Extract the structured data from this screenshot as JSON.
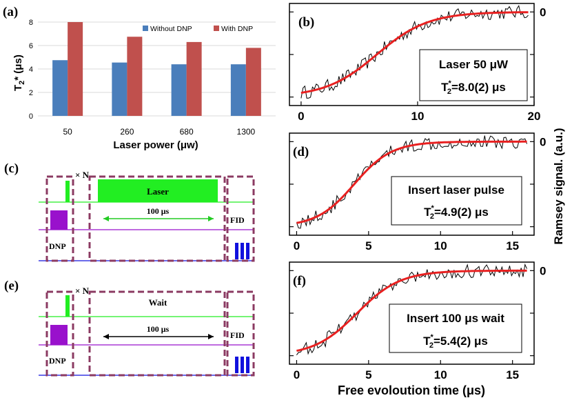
{
  "chart_data": [
    {
      "id": "a",
      "type": "bar",
      "panel_label": "(a)",
      "categories": [
        "50",
        "260",
        "680",
        "1300"
      ],
      "series": [
        {
          "name": "Without DNP",
          "color": "#4a7ebb",
          "values": [
            4.75,
            4.55,
            4.4,
            4.4
          ]
        },
        {
          "name": "With DNP",
          "color": "#c0504d",
          "values": [
            8.0,
            6.75,
            6.3,
            5.8
          ]
        }
      ],
      "ylabel_main": "T",
      "ylabel_sub": "2",
      "ylabel_rest": "* (μs)",
      "xlabel": "Laser power (μw)",
      "ylim": [
        0,
        8
      ],
      "yticks": [
        "0",
        "2",
        "4",
        "6",
        "8"
      ],
      "legend": "top-right",
      "grid": true
    },
    {
      "id": "b",
      "type": "line",
      "panel_label": "(b)",
      "xlim": [
        -1,
        20
      ],
      "xticks": [
        "0",
        "10",
        "20"
      ],
      "xtick_values": [
        0,
        10,
        20
      ],
      "ylim": [
        -1.1,
        0.1
      ],
      "right_ticks": [
        "0"
      ],
      "fit": {
        "color": "#e82020",
        "x0": 0,
        "x1": 19.5,
        "y_start": -1,
        "y_end": 0,
        "midpoint": 6.5,
        "width": 2.2
      },
      "annotation": {
        "line1": "Laser 50 μW",
        "t_main": "T",
        "t_sub": "2",
        "t_sup": "*",
        "t_value": "=8.0(2) μs"
      }
    },
    {
      "id": "d",
      "type": "line",
      "panel_label": "(d)",
      "xlim": [
        -0.5,
        16.5
      ],
      "xticks": [
        "0",
        "5",
        "10",
        "15"
      ],
      "xtick_values": [
        0,
        5,
        10,
        15
      ],
      "ylim": [
        -1.1,
        0.1
      ],
      "right_ticks": [
        "0"
      ],
      "fit": {
        "color": "#e82020",
        "x0": 0,
        "x1": 16,
        "y_start": -1,
        "y_end": 0,
        "midpoint": 4.0,
        "width": 1.3
      },
      "annotation": {
        "line1": "Insert laser pulse",
        "t_main": "T",
        "t_sub": "2",
        "t_sup": "*",
        "t_value": "=4.9(2) μs"
      }
    },
    {
      "id": "f",
      "type": "line",
      "panel_label": "(f)",
      "xlim": [
        -0.5,
        16.5
      ],
      "xticks": [
        "0",
        "5",
        "10",
        "15"
      ],
      "xtick_values": [
        0,
        5,
        10,
        15
      ],
      "ylim": [
        -1.1,
        0.1
      ],
      "right_ticks": [
        "0"
      ],
      "fit": {
        "color": "#e82020",
        "x0": 0,
        "x1": 16,
        "y_start": -1,
        "y_end": 0,
        "midpoint": 4.2,
        "width": 1.5
      },
      "annotation": {
        "line1": "Insert 100 μs wait",
        "t_main": "T",
        "t_sub": "2",
        "t_sup": "*",
        "t_value": "=5.4(2) μs"
      }
    }
  ],
  "shared": {
    "right_ylabel": "Ramsey signal. (a.u.)",
    "bottom_xlabel": "Free evoloution time (μs)"
  },
  "sequences": [
    {
      "id": "c",
      "panel_label": "(c)",
      "repeat_label": "× N",
      "block_label": "Laser",
      "duration_label": "100 μs",
      "dnp_label": "DNP",
      "fid_label": "FID",
      "duration_arrow_color": "#22cc22",
      "laser_color": "#22ee22",
      "mw_color": "#9911cc",
      "readout_color": "#1111dd",
      "box_color": "#8b3a62"
    },
    {
      "id": "e",
      "panel_label": "(e)",
      "repeat_label": "× N",
      "block_label": "Wait",
      "duration_label": "100 μs",
      "dnp_label": "DNP",
      "fid_label": "FID",
      "duration_arrow_color": "#000000",
      "laser_color": "#22ee22",
      "mw_color": "#9911cc",
      "readout_color": "#1111dd",
      "box_color": "#8b3a62"
    }
  ]
}
